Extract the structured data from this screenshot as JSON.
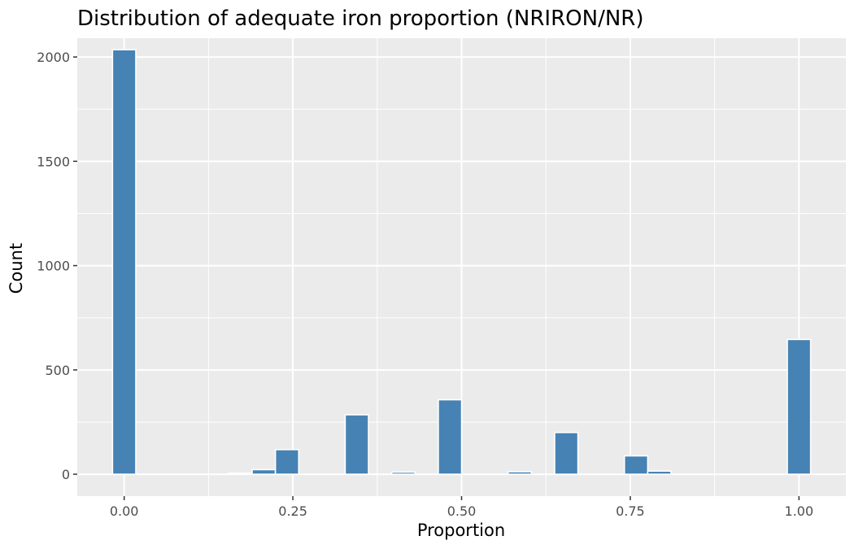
{
  "chart_data": {
    "type": "bar",
    "title": "Distribution of adequate iron proportion (NRIRON/NR)",
    "xlabel": "Proportion",
    "ylabel": "Count",
    "xlim": [
      -0.0695,
      1.0695
    ],
    "ylim": [
      -105,
      2090
    ],
    "x_ticks": [
      0,
      0.25,
      0.5,
      0.75,
      1
    ],
    "x_tick_labels": [
      "0.00",
      "0.25",
      "0.50",
      "0.75",
      "1.00"
    ],
    "y_ticks": [
      0,
      500,
      1000,
      1500,
      2000
    ],
    "y_tick_labels": [
      "0",
      "500",
      "1000",
      "1500",
      "2000"
    ],
    "bin_width": 0.0345,
    "bins": [
      {
        "x": 0.0,
        "count": 2035
      },
      {
        "x": 0.1724,
        "count": 5
      },
      {
        "x": 0.2069,
        "count": 22
      },
      {
        "x": 0.2414,
        "count": 118
      },
      {
        "x": 0.3448,
        "count": 285
      },
      {
        "x": 0.4138,
        "count": 10
      },
      {
        "x": 0.4828,
        "count": 357
      },
      {
        "x": 0.5862,
        "count": 12
      },
      {
        "x": 0.6552,
        "count": 200
      },
      {
        "x": 0.7586,
        "count": 88
      },
      {
        "x": 0.7931,
        "count": 15
      },
      {
        "x": 1.0,
        "count": 646
      }
    ],
    "bar_color": "#4682b4",
    "bar_outline": "#ffffff",
    "panel_background": "#ebebeb",
    "grid_color": "#ffffff",
    "grid": true,
    "legend": "none"
  }
}
